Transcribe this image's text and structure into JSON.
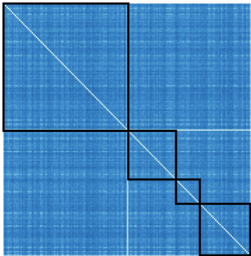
{
  "chart_data": {
    "type": "heatmap",
    "title": "",
    "xlabel": "",
    "ylabel": "",
    "matrix_size": 176,
    "value_range": [
      0,
      1
    ],
    "diagonal_value": 1,
    "colormap": [
      "#1d5a9c",
      "#2a6cb1",
      "#3a86c8",
      "#56a6d6",
      "#8ccbe0",
      "#d7f0e8"
    ],
    "typical_offdiagonal_value": 0.35,
    "blocks": [
      {
        "name": "block-1",
        "start": 0,
        "end": 88
      },
      {
        "name": "block-2",
        "start": 89,
        "end": 122
      },
      {
        "name": "block-3",
        "start": 123,
        "end": 139
      },
      {
        "name": "block-4",
        "start": 140,
        "end": 175
      }
    ],
    "bright_row_col": 88,
    "grid": false,
    "legend": "none"
  }
}
